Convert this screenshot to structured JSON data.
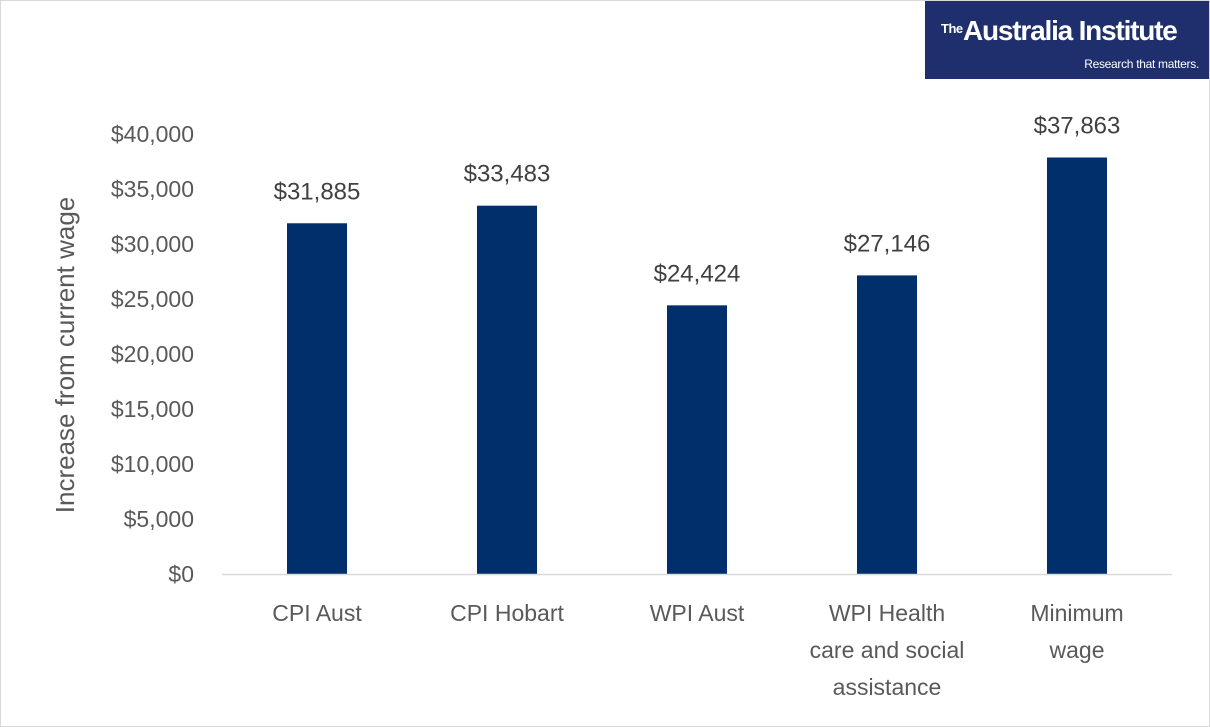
{
  "logo": {
    "the": "The",
    "name": "Australia Institute",
    "tagline": "Research that matters."
  },
  "colors": {
    "bar": "#002f6c",
    "logo_bg": "#1f2f6e",
    "axis_text": "#595959",
    "baseline": "#d9d9d9"
  },
  "chart_data": {
    "type": "bar",
    "title": "",
    "xlabel": "",
    "ylabel": "Increase from current wage",
    "categories": [
      [
        "CPI Aust"
      ],
      [
        "CPI Hobart"
      ],
      [
        "WPI Aust"
      ],
      [
        "WPI Health",
        "care and social",
        "assistance"
      ],
      [
        "Minimum",
        "wage"
      ]
    ],
    "values": [
      31885,
      33483,
      24424,
      27146,
      37863
    ],
    "data_labels": [
      "$31,885",
      "$33,483",
      "$24,424",
      "$27,146",
      "$37,863"
    ],
    "ylim": [
      0,
      40000
    ],
    "yticks": [
      0,
      5000,
      10000,
      15000,
      20000,
      25000,
      30000,
      35000,
      40000
    ],
    "ytick_labels": [
      "$0",
      "$5,000",
      "$10,000",
      "$15,000",
      "$20,000",
      "$25,000",
      "$30,000",
      "$35,000",
      "$40,000"
    ],
    "grid": false,
    "legend": "none"
  }
}
